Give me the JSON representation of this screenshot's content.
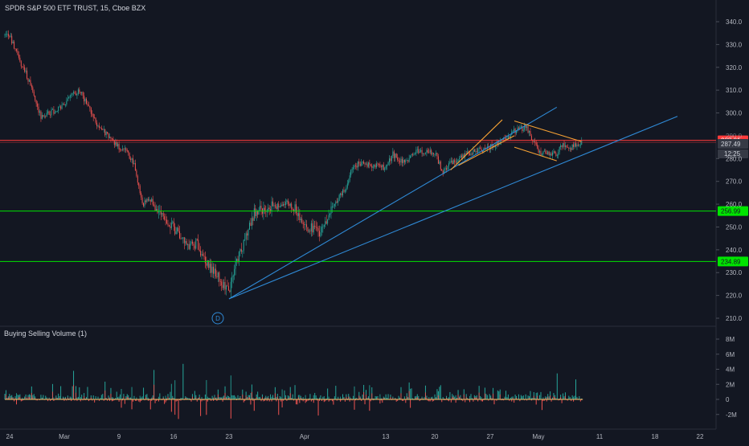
{
  "header": {
    "title": "SPDR S&P 500 ETF TRUST, 15, Cboe BZX",
    "volume_title": "Buying Selling Volume (1)"
  },
  "colors": {
    "background": "#131722",
    "up": "#26a69a",
    "down": "#ef5350",
    "trendline": "#2f8ad6",
    "wedge": "#f7a234",
    "support": "#00e500",
    "resistance": "#ff3b3b",
    "axis_text": "#b2b5be"
  },
  "chart_data": [
    {
      "type": "candlestick",
      "title": "SPDR S&P 500 ETF TRUST, 15, Cboe BZX",
      "x_tick_labels": [
        "24",
        "Mar",
        "9",
        "16",
        "23",
        "Apr",
        "13",
        "20",
        "27",
        "May",
        "11",
        "18",
        "22"
      ],
      "y_ticks": [
        210.0,
        220.0,
        230.0,
        240.0,
        250.0,
        260.0,
        270.0,
        280.0,
        290.0,
        300.0,
        310.0,
        320.0,
        330.0,
        340.0
      ],
      "ylim": [
        207,
        344
      ],
      "grid": false,
      "price_path": [
        [
          "Feb 24",
          334
        ],
        [
          "Feb 25",
          325
        ],
        [
          "Feb 26",
          318
        ],
        [
          "Feb 27",
          309
        ],
        [
          "Feb 28",
          298
        ],
        [
          "Mar 2",
          303
        ],
        [
          "Mar 3",
          308
        ],
        [
          "Mar 4",
          310
        ],
        [
          "Mar 5",
          303
        ],
        [
          "Mar 6",
          296
        ],
        [
          "Mar 9",
          285
        ],
        [
          "Mar 10",
          283
        ],
        [
          "Mar 11",
          277
        ],
        [
          "Mar 12",
          260
        ],
        [
          "Mar 13",
          262
        ],
        [
          "Mar 16",
          250
        ],
        [
          "Mar 17",
          245
        ],
        [
          "Mar 18",
          241
        ],
        [
          "Mar 19",
          243
        ],
        [
          "Mar 20",
          235
        ],
        [
          "Mar 23",
          222
        ],
        [
          "Mar 24",
          236
        ],
        [
          "Mar 25",
          245
        ],
        [
          "Mar 26",
          256
        ],
        [
          "Mar 27",
          258
        ],
        [
          "Mar 30",
          261
        ],
        [
          "Mar 31",
          258
        ],
        [
          "Apr 1",
          250
        ],
        [
          "Apr 2",
          250
        ],
        [
          "Apr 3",
          247
        ],
        [
          "Apr 6",
          263
        ],
        [
          "Apr 7",
          267
        ],
        [
          "Apr 8",
          275
        ],
        [
          "Apr 9",
          278
        ],
        [
          "Apr 13",
          276
        ],
        [
          "Apr 14",
          282
        ],
        [
          "Apr 15",
          279
        ],
        [
          "Apr 16",
          279
        ],
        [
          "Apr 17",
          283
        ],
        [
          "Apr 20",
          283
        ],
        [
          "Apr 21",
          274
        ],
        [
          "Apr 22",
          278
        ],
        [
          "Apr 23",
          280
        ],
        [
          "Apr 24",
          282
        ],
        [
          "Apr 27",
          285
        ],
        [
          "Apr 28",
          288
        ],
        [
          "Apr 29",
          292
        ],
        [
          "Apr 30",
          294
        ],
        [
          "May 1",
          283
        ],
        [
          "May 4",
          282
        ],
        [
          "May 5",
          286
        ],
        [
          "May 6",
          284
        ],
        [
          "May 7",
          286
        ],
        [
          "May 8",
          287
        ]
      ],
      "horizontal_levels": [
        {
          "label": "288.01",
          "value": 288.01,
          "kind": "resistance"
        },
        {
          "label": "256.99",
          "value": 256.99,
          "kind": "support"
        },
        {
          "label": "234.89",
          "value": 234.89,
          "kind": "support"
        }
      ],
      "last_price": "287.49",
      "countdown": "12:25",
      "trendlines": [
        {
          "name": "upper-trendline",
          "from": [
            "Mar 23",
            218.5
          ],
          "to": [
            "May 4",
            302.5
          ]
        },
        {
          "name": "lower-trendline",
          "from": [
            "Mar 23",
            218.5
          ],
          "to": [
            "May 20",
            298.5
          ]
        }
      ],
      "wedge_lines": [
        {
          "name": "wedge-upper-left",
          "from": [
            "Apr 22",
            275
          ],
          "to": [
            "Apr 28",
            297
          ]
        },
        {
          "name": "wedge-lower-left",
          "from": [
            "Apr 23",
            277
          ],
          "to": [
            "Apr 29",
            290
          ]
        },
        {
          "name": "wedge-upper-right",
          "from": [
            "Apr 29",
            296.5
          ],
          "to": [
            "May 8",
            287.5
          ]
        },
        {
          "name": "wedge-lower-right",
          "from": [
            "Apr 29",
            285
          ],
          "to": [
            "May 4",
            279
          ]
        }
      ],
      "marker": "D"
    },
    {
      "type": "bar",
      "title": "Buying Selling Volume (1)",
      "y_tick_labels": [
        "8M",
        "6M",
        "4M",
        "2M",
        "0",
        "-2M"
      ],
      "y_ticks": [
        8,
        6,
        4,
        2,
        0,
        -2
      ],
      "ylim": [
        -3,
        9
      ]
    }
  ]
}
